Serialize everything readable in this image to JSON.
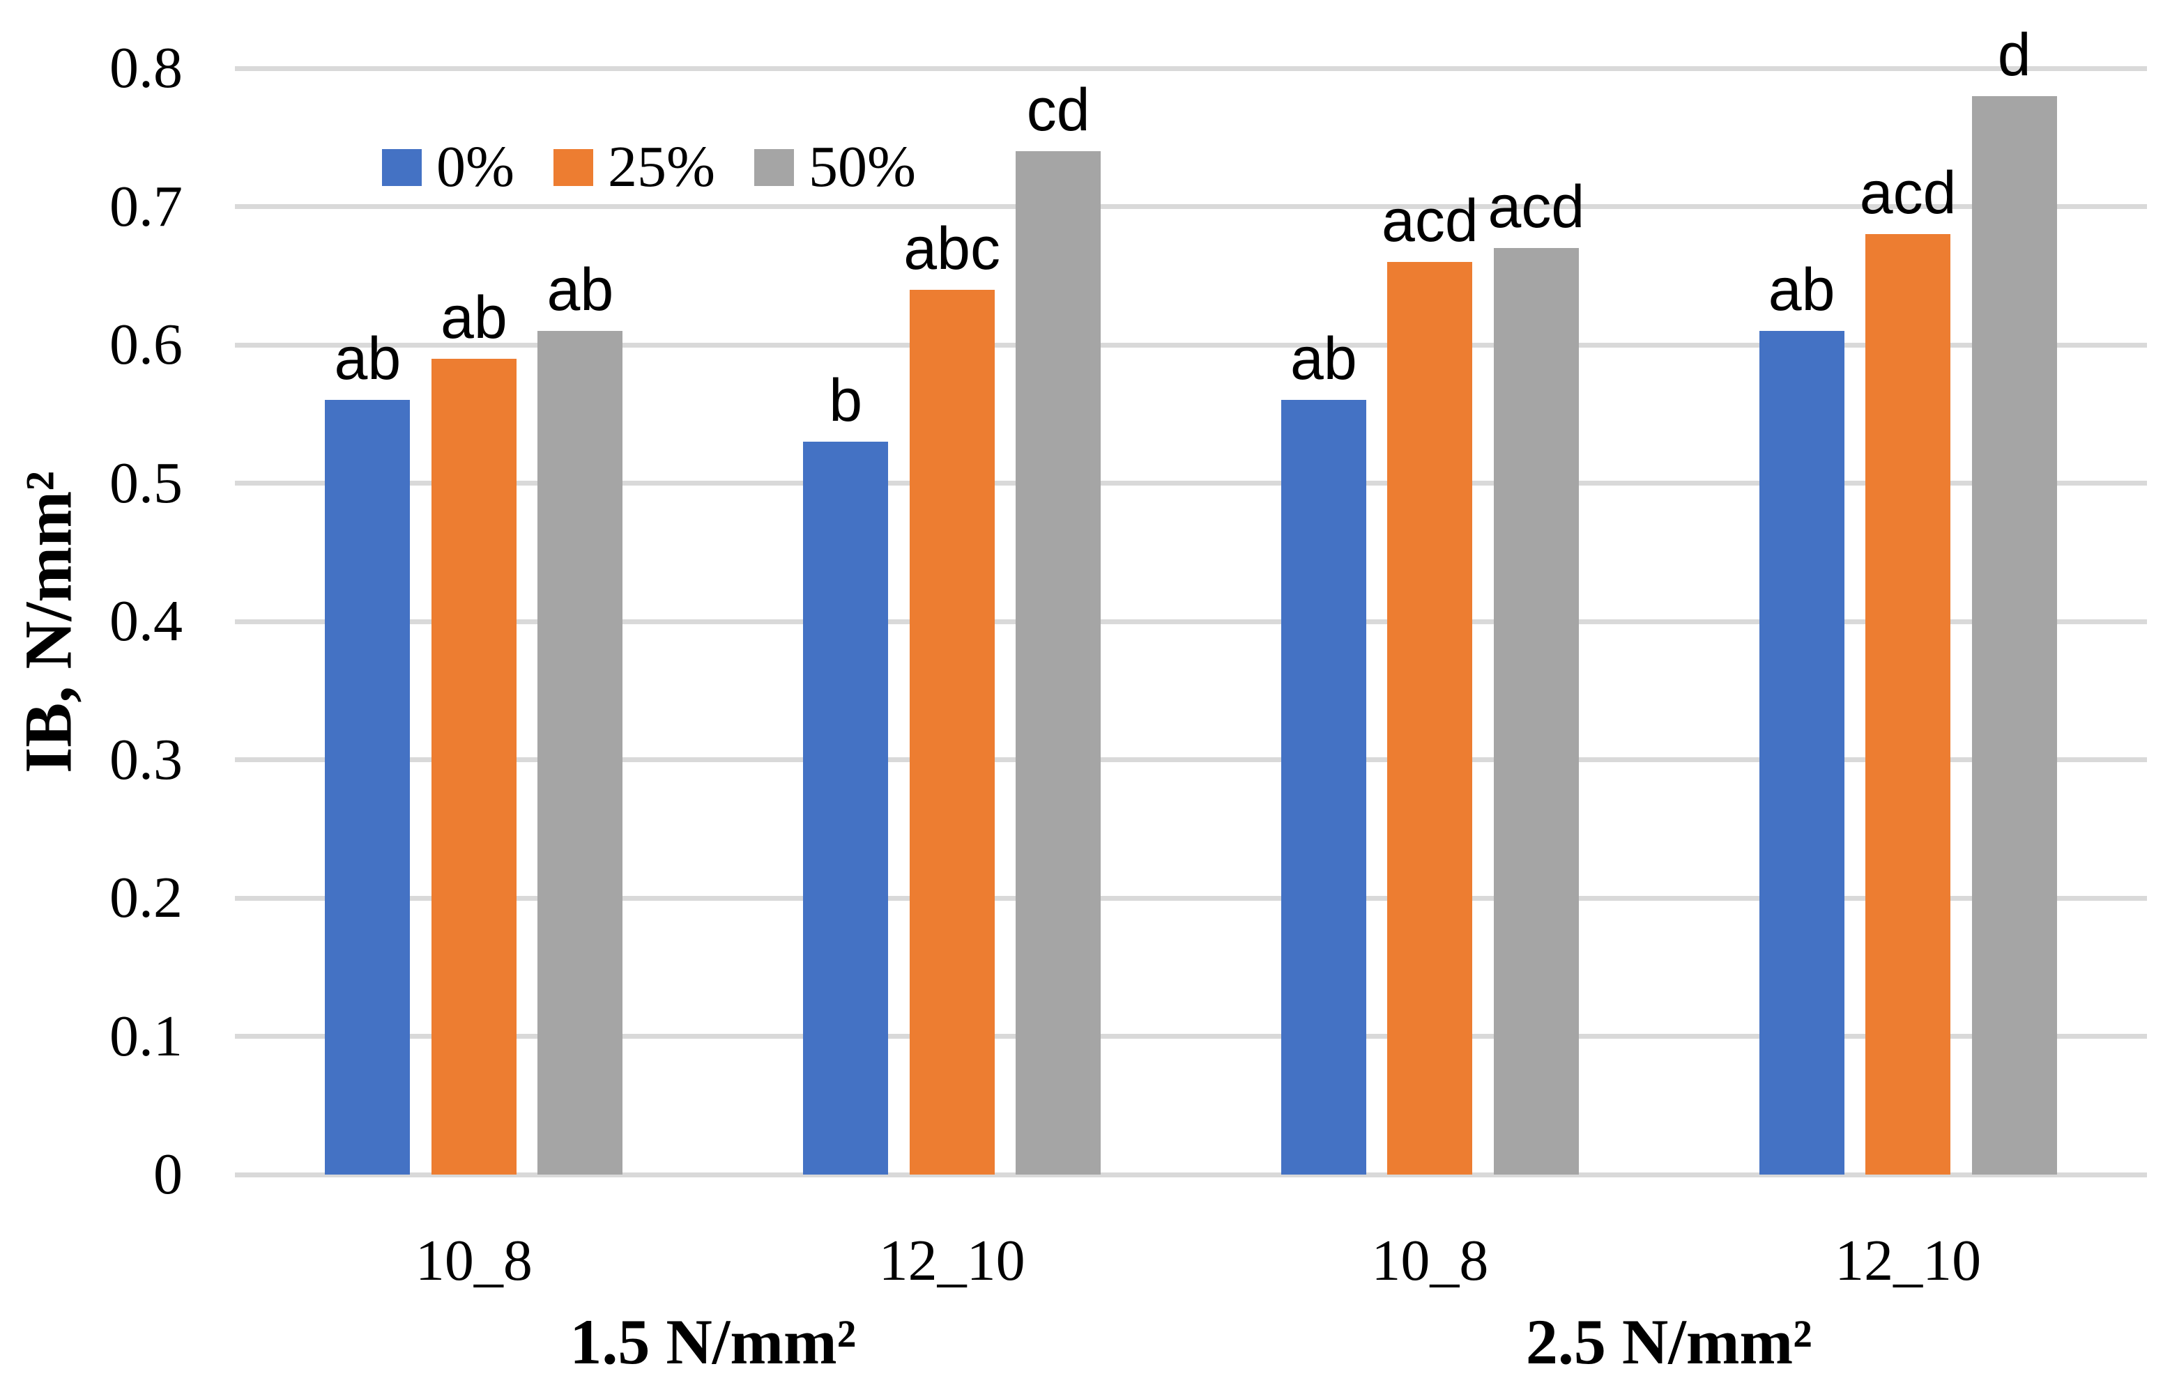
{
  "chart_data": {
    "type": "bar",
    "title": "",
    "ylabel": "IB, N/mm²",
    "xlabel": "",
    "ylim": [
      0,
      0.8
    ],
    "ytick_step": 0.1,
    "ytick_labels": [
      "0",
      "0.1",
      "0.2",
      "0.3",
      "0.4",
      "0.5",
      "0.6",
      "0.7",
      "0.8"
    ],
    "grid": true,
    "legend_position": "inside-top-left",
    "categories": [
      "10_8",
      "12_10",
      "10_8",
      "12_10"
    ],
    "sections": [
      {
        "label": "1.5 N/mm²",
        "category_indexes": [
          0,
          1
        ]
      },
      {
        "label": "2.5 N/mm²",
        "category_indexes": [
          2,
          3
        ]
      }
    ],
    "series": [
      {
        "name": "0%",
        "color": "#4472C4",
        "values": [
          0.56,
          0.53,
          0.56,
          0.61
        ],
        "labels": [
          "ab",
          "b",
          "ab",
          "ab"
        ]
      },
      {
        "name": "25%",
        "color": "#ED7D31",
        "values": [
          0.59,
          0.64,
          0.66,
          0.68
        ],
        "labels": [
          "ab",
          "abc",
          "acd",
          "acd"
        ]
      },
      {
        "name": "50%",
        "color": "#A5A5A5",
        "values": [
          0.61,
          0.74,
          0.67,
          0.78
        ],
        "labels": [
          "ab",
          "cd",
          "acd",
          "d"
        ]
      }
    ],
    "colors": {
      "gridline": "#D9D9D9",
      "text": "#000000",
      "background": "#FFFFFF"
    }
  }
}
